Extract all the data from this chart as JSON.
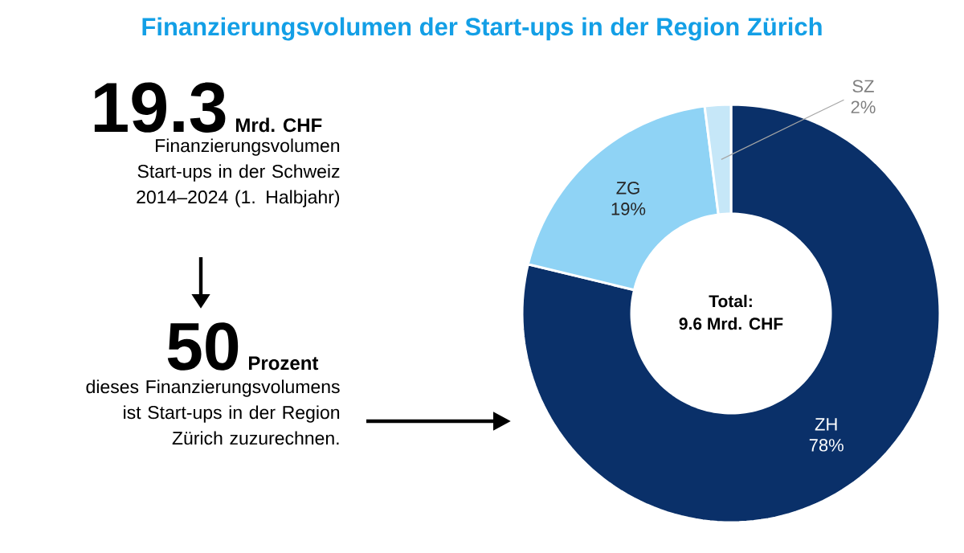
{
  "chart_data": {
    "type": "donut",
    "title": "Finanzierungsvolumen der Start-ups in der Region Zürich",
    "categories": [
      "ZH",
      "ZG",
      "SZ"
    ],
    "values": [
      78,
      19,
      2
    ],
    "value_labels": [
      "78%",
      "19%",
      "2%"
    ],
    "colors": [
      "#0a3069",
      "#8fd3f5",
      "#c6e7f8"
    ],
    "annotations": [
      "19.3",
      "Mrd. CHF",
      "Finanzierungsvolumen Start-ups in der Schweiz 2014–2024 (1. Halbjahr)",
      "50",
      "Prozent",
      "dieses Finanzierungsvolumens ist Start-ups in der Region Zürich zuzurechnen.",
      "Total:",
      "9.6 Mrd. CHF"
    ]
  }
}
